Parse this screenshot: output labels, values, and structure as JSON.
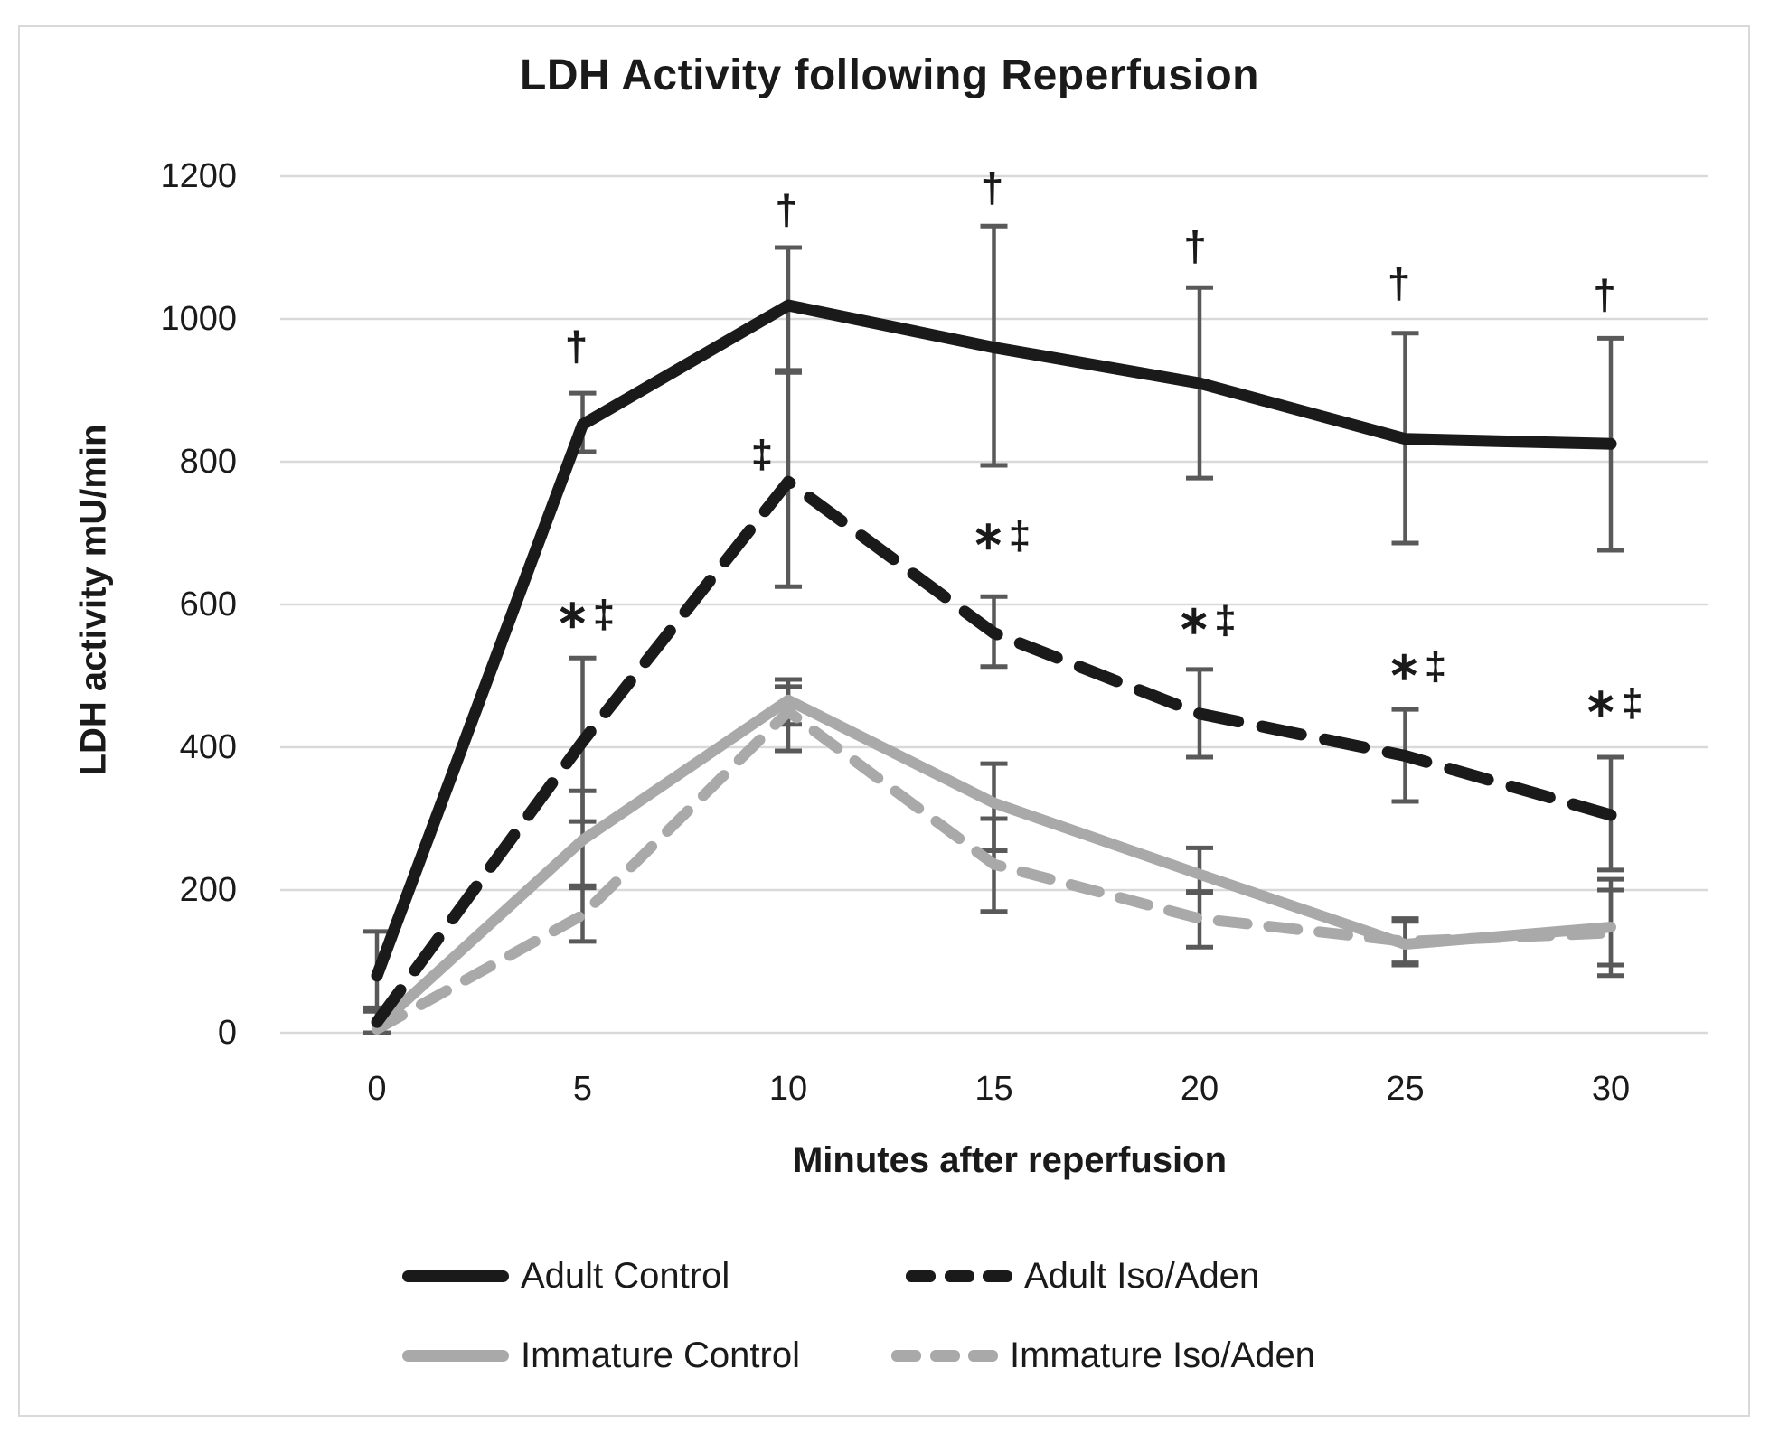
{
  "chart_data": {
    "type": "line",
    "title": "LDH Activity following Reperfusion",
    "xlabel": "Minutes after reperfusion",
    "ylabel": "LDH activity mU/min",
    "x": [
      0,
      5,
      10,
      15,
      20,
      25,
      30
    ],
    "yticks": [
      0,
      200,
      400,
      600,
      800,
      1000,
      1200
    ],
    "ylim": [
      0,
      1260
    ],
    "grid": true,
    "legend_position": "bottom",
    "gridline_color": "#d9d9d9",
    "error_bar_color": "#595959",
    "series": [
      {
        "name": "Adult Control",
        "color": "#1a1a1a",
        "style": "solid",
        "values": [
          80,
          852,
          1019,
          960,
          910,
          832,
          825
        ],
        "err_low": [
          30,
          814,
          928,
          795,
          777,
          686,
          676
        ],
        "err_high": [
          142,
          896,
          1100,
          1130,
          1044,
          980,
          973
        ]
      },
      {
        "name": "Adult Iso/Aden",
        "color": "#1a1a1a",
        "style": "dashed",
        "values": [
          15,
          408,
          772,
          560,
          447,
          388,
          305
        ],
        "err_low": [
          0,
          296,
          625,
          513,
          386,
          324,
          228
        ],
        "err_high": [
          35,
          525,
          925,
          611,
          509,
          453,
          386
        ]
      },
      {
        "name": "Immature Control",
        "color": "#a9a9a9",
        "style": "solid",
        "values": [
          8,
          270,
          466,
          322,
          222,
          124,
          148
        ],
        "err_low": [
          null,
          206,
          432,
          255,
          196,
          95,
          95
        ],
        "err_high": [
          null,
          339,
          495,
          377,
          259,
          156,
          200
        ]
      },
      {
        "name": "Immature Iso/Aden",
        "color": "#a9a9a9",
        "style": "dashed",
        "values": [
          5,
          165,
          450,
          236,
          160,
          128,
          140
        ],
        "err_low": [
          null,
          128,
          395,
          170,
          120,
          98,
          80
        ],
        "err_high": [
          null,
          203,
          485,
          300,
          198,
          160,
          215
        ]
      }
    ],
    "annotations": [
      {
        "text": "†",
        "min": 5,
        "value": 962,
        "dx": -5
      },
      {
        "text": "†",
        "min": 10,
        "value": 1153,
        "dx": 0
      },
      {
        "text": "†",
        "min": 15,
        "value": 1184,
        "dx": 0
      },
      {
        "text": "†",
        "min": 20,
        "value": 1102,
        "dx": -3
      },
      {
        "text": "†",
        "min": 25,
        "value": 1050,
        "dx": -5
      },
      {
        "text": "†",
        "min": 30,
        "value": 1034,
        "dx": -5
      },
      {
        "text": "∗‡",
        "min": 5,
        "value": 586,
        "dx": 5
      },
      {
        "text": "‡",
        "min": 10,
        "value": 810,
        "dx": -27
      },
      {
        "text": "∗‡",
        "min": 15,
        "value": 696,
        "dx": 10
      },
      {
        "text": "∗‡",
        "min": 20,
        "value": 578,
        "dx": 10
      },
      {
        "text": "∗‡",
        "min": 25,
        "value": 513,
        "dx": 15
      },
      {
        "text": "∗‡",
        "min": 30,
        "value": 462,
        "dx": 5
      }
    ]
  },
  "legend": {
    "row1_item1": "Adult Control",
    "row1_item2": "Adult Iso/Aden",
    "row2_item1": "Immature Control",
    "row2_item2": "Immature Iso/Aden"
  }
}
